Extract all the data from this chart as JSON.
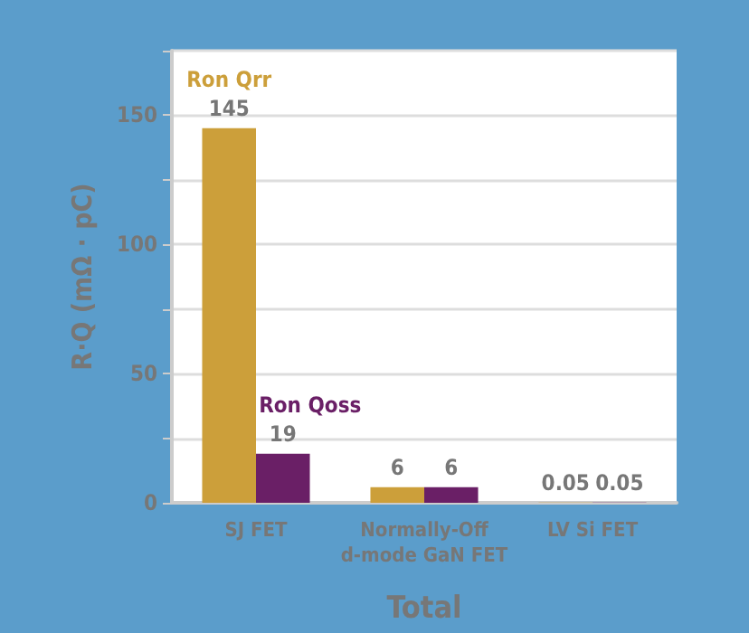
{
  "chart_data": {
    "type": "bar",
    "xlabel": "Total",
    "ylabel": "R·Q (mΩ · pC)",
    "categories": [
      "SJ FET",
      "Normally-Off\nd-mode GaN FET",
      "LV Si FET"
    ],
    "series": [
      {
        "name": "Ron Qrr",
        "color": "#cc9f3a",
        "values": [
          145,
          6,
          0.05
        ]
      },
      {
        "name": "Ron Qoss",
        "color": "#6a1f66",
        "values": [
          19,
          6,
          0.05
        ]
      }
    ],
    "ylim": [
      0,
      175
    ],
    "yticks": [
      0,
      {
        "value": 25,
        "label": null
      },
      50,
      {
        "value": 75,
        "label": null
      },
      100,
      {
        "value": 125,
        "label": null
      },
      150,
      {
        "value": 175,
        "label": null
      }
    ],
    "grid": "y",
    "legend": false,
    "data_labels": true
  }
}
